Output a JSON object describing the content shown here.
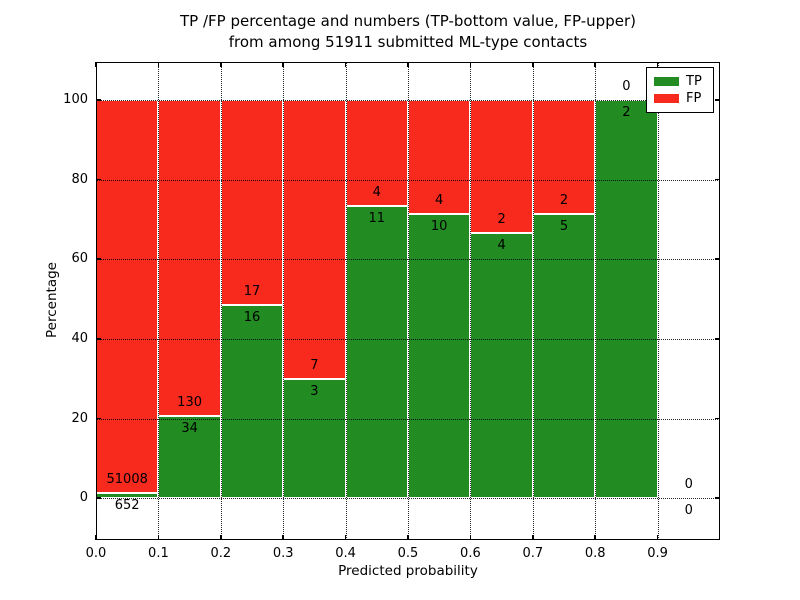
{
  "title": {
    "line1": "TP /FP percentage and numbers (TP-bottom value, FP-upper)",
    "line2": "from among 51911 submitted ML-type contacts"
  },
  "chart_data": {
    "type": "bar",
    "stacked": true,
    "title": "TP /FP percentage and numbers (TP-bottom value, FP-upper)\nfrom among 51911 submitted ML-type contacts",
    "xlabel": "Predicted probability",
    "ylabel": "Percentage",
    "xlim": [
      0,
      1.0
    ],
    "ylim": [
      -10.5,
      109.5
    ],
    "x_ticks": [
      "0.0",
      "0.1",
      "0.2",
      "0.3",
      "0.4",
      "0.5",
      "0.6",
      "0.7",
      "0.8",
      "0.9"
    ],
    "y_ticks": [
      0,
      20,
      40,
      60,
      80,
      100
    ],
    "grid": "dotted-black-both-axes",
    "total_contacts": 51911,
    "legend": {
      "position": "upper right",
      "entries": [
        {
          "label": "TP",
          "color": "#228B22"
        },
        {
          "label": "FP",
          "color": "#F8291D"
        }
      ]
    },
    "colors": {
      "tp": "#228B22",
      "fp": "#F8291D",
      "bar_edge": "#ffffff",
      "grid": "#000000"
    },
    "series": [
      {
        "name": "TP",
        "values": [
          1.26,
          20.73,
          48.48,
          30.0,
          73.33,
          71.43,
          66.67,
          71.43,
          100.0,
          0
        ]
      },
      {
        "name": "FP",
        "values": [
          98.74,
          79.27,
          51.52,
          70.0,
          26.67,
          28.57,
          33.33,
          28.57,
          0.0,
          0
        ]
      }
    ],
    "bins": [
      {
        "x_start": 0.0,
        "x_end": 0.1,
        "tp_count": 652,
        "fp_count": 51008,
        "tp_pct": 1.26
      },
      {
        "x_start": 0.1,
        "x_end": 0.2,
        "tp_count": 34,
        "fp_count": 130,
        "tp_pct": 20.73
      },
      {
        "x_start": 0.2,
        "x_end": 0.3,
        "tp_count": 16,
        "fp_count": 17,
        "tp_pct": 48.48
      },
      {
        "x_start": 0.3,
        "x_end": 0.4,
        "tp_count": 3,
        "fp_count": 7,
        "tp_pct": 30.0
      },
      {
        "x_start": 0.4,
        "x_end": 0.5,
        "tp_count": 11,
        "fp_count": 4,
        "tp_pct": 73.33
      },
      {
        "x_start": 0.5,
        "x_end": 0.6,
        "tp_count": 10,
        "fp_count": 4,
        "tp_pct": 71.43
      },
      {
        "x_start": 0.6,
        "x_end": 0.7,
        "tp_count": 4,
        "fp_count": 2,
        "tp_pct": 66.67
      },
      {
        "x_start": 0.7,
        "x_end": 0.8,
        "tp_count": 5,
        "fp_count": 2,
        "tp_pct": 71.43
      },
      {
        "x_start": 0.8,
        "x_end": 0.9,
        "tp_count": 2,
        "fp_count": 0,
        "tp_pct": 100.0
      },
      {
        "x_start": 0.9,
        "x_end": 1.0,
        "tp_count": 0,
        "fp_count": 0,
        "tp_pct": null
      }
    ]
  }
}
